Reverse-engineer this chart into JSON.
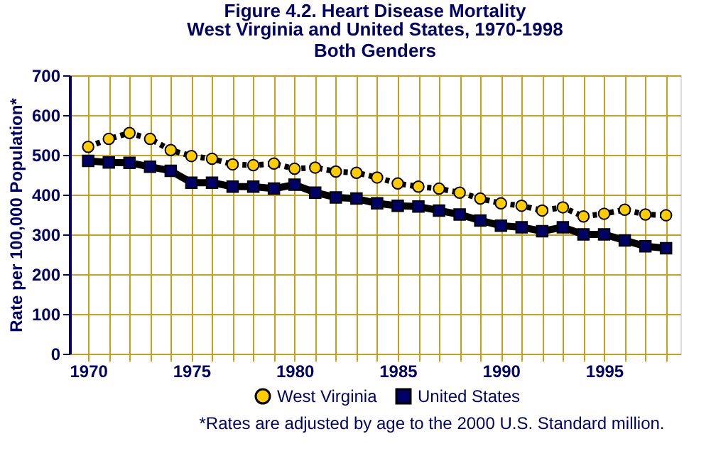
{
  "chart_data": {
    "type": "line",
    "title": "Figure 4.2. Heart Disease Mortality",
    "subtitle": [
      "West Virginia and United States, 1970-1998",
      "Both Genders"
    ],
    "ylabel": "Rate per 100,000 Population*",
    "x": [
      1970,
      1971,
      1972,
      1973,
      1974,
      1975,
      1976,
      1977,
      1978,
      1979,
      1980,
      1981,
      1982,
      1983,
      1984,
      1985,
      1986,
      1987,
      1988,
      1989,
      1990,
      1991,
      1992,
      1993,
      1994,
      1995,
      1996,
      1997,
      1998
    ],
    "series": [
      {
        "name": "West Virginia",
        "color": "#ffcc00",
        "marker": "circle",
        "line_style": "dotted",
        "values": [
          520,
          540,
          555,
          540,
          512,
          497,
          490,
          476,
          474,
          478,
          465,
          468,
          458,
          455,
          443,
          428,
          420,
          415,
          405,
          390,
          378,
          372,
          360,
          368,
          345,
          352,
          362,
          350,
          348
        ]
      },
      {
        "name": "United States",
        "color": "#000066",
        "marker": "square",
        "line_style": "solid",
        "values": [
          485,
          481,
          480,
          470,
          460,
          430,
          430,
          420,
          420,
          415,
          425,
          405,
          393,
          390,
          378,
          372,
          370,
          360,
          350,
          335,
          322,
          318,
          308,
          318,
          300,
          300,
          285,
          270,
          265
        ]
      }
    ],
    "xlim": [
      1969.1,
      1998.7
    ],
    "xticks": [
      1970,
      {
        "value": 1971,
        "label": null
      },
      {
        "value": 1972,
        "label": null
      },
      {
        "value": 1973,
        "label": null
      },
      {
        "value": 1974,
        "label": null
      },
      1975,
      {
        "value": 1976,
        "label": null
      },
      {
        "value": 1977,
        "label": null
      },
      {
        "value": 1978,
        "label": null
      },
      {
        "value": 1979,
        "label": null
      },
      1980,
      {
        "value": 1981,
        "label": null
      },
      {
        "value": 1982,
        "label": null
      },
      {
        "value": 1983,
        "label": null
      },
      {
        "value": 1984,
        "label": null
      },
      1985,
      {
        "value": 1986,
        "label": null
      },
      {
        "value": 1987,
        "label": null
      },
      {
        "value": 1988,
        "label": null
      },
      {
        "value": 1989,
        "label": null
      },
      1990,
      {
        "value": 1991,
        "label": null
      },
      {
        "value": 1992,
        "label": null
      },
      {
        "value": 1993,
        "label": null
      },
      {
        "value": 1994,
        "label": null
      },
      1995,
      {
        "value": 1996,
        "label": null
      },
      {
        "value": 1997,
        "label": null
      },
      {
        "value": 1998,
        "label": null
      }
    ],
    "ylim": [
      0,
      700
    ],
    "yticks": [
      0,
      100,
      200,
      300,
      400,
      500,
      600,
      700
    ],
    "grid": true,
    "legend": "bottom",
    "annotations": [
      "*Rates are adjusted by age to the 2000 U.S. Standard million."
    ]
  }
}
